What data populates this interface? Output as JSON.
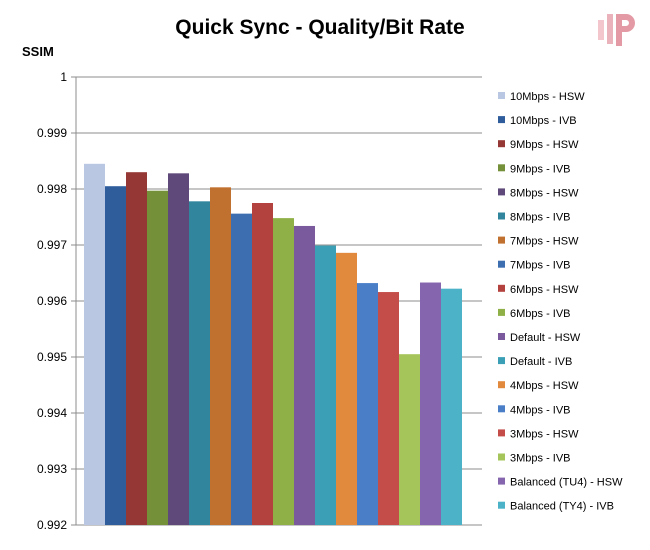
{
  "chart_data": {
    "type": "bar",
    "title": "Quick Sync - Quality/Bit Rate",
    "ylabel": "SSIM",
    "xlabel": "",
    "ylim": [
      0.992,
      1
    ],
    "yticks": [
      "0.992",
      "0.993",
      "0.994",
      "0.995",
      "0.996",
      "0.997",
      "0.998",
      "0.999",
      "1"
    ],
    "grid": true,
    "legend_position": "right",
    "series": [
      {
        "name": "10Mbps - HSW",
        "value": 0.99845,
        "color": "#bac7e3"
      },
      {
        "name": "10Mbps - IVB",
        "value": 0.99805,
        "color": "#2f5d9c"
      },
      {
        "name": "9Mbps - HSW",
        "value": 0.9983,
        "color": "#953734"
      },
      {
        "name": "9Mbps - IVB",
        "value": 0.99797,
        "color": "#74913a"
      },
      {
        "name": "8Mbps - HSW",
        "value": 0.99828,
        "color": "#5f497a"
      },
      {
        "name": "8Mbps - IVB",
        "value": 0.99778,
        "color": "#31859c"
      },
      {
        "name": "7Mbps - HSW",
        "value": 0.99803,
        "color": "#c0702f"
      },
      {
        "name": "7Mbps - IVB",
        "value": 0.99756,
        "color": "#3d6fb0"
      },
      {
        "name": "6Mbps - HSW",
        "value": 0.99775,
        "color": "#b3413e"
      },
      {
        "name": "6Mbps - IVB",
        "value": 0.99748,
        "color": "#8fb047"
      },
      {
        "name": "Default - HSW",
        "value": 0.99734,
        "color": "#7a5a9c"
      },
      {
        "name": "Default - IVB",
        "value": 0.99699,
        "color": "#3ba0b6"
      },
      {
        "name": "4Mbps - HSW",
        "value": 0.99686,
        "color": "#e18a3e"
      },
      {
        "name": "4Mbps - IVB",
        "value": 0.99632,
        "color": "#4a7fc8"
      },
      {
        "name": "3Mbps - HSW",
        "value": 0.99616,
        "color": "#c44d4a"
      },
      {
        "name": "3Mbps - IVB",
        "value": 0.99505,
        "color": "#a5c45a"
      },
      {
        "name": "Balanced (TU4) - HSW",
        "value": 0.99633,
        "color": "#8566ae"
      },
      {
        "name": "Balanced (TY4) - IVB",
        "value": 0.99622,
        "color": "#4bb2c7"
      }
    ]
  }
}
